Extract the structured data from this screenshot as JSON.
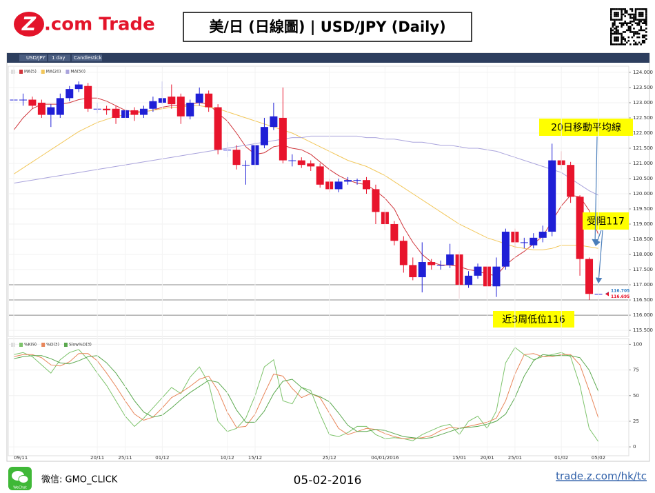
{
  "header": {
    "logo_mark": "Z",
    "logo_text": ".com Trade",
    "title": "美/日 (日線圖) | USD/JPY  (Daily)"
  },
  "toolbar": {
    "symbol": "USD/JPY",
    "interval": "1 day",
    "chart_type": "Candlestick"
  },
  "footer": {
    "wechat_icon": "WeChat",
    "wechat": "微信: GMO_CLICK",
    "date": "05-02-2016",
    "url": "trade.z.com/hk/tc"
  },
  "chart_data": [
    {
      "type": "candlestick",
      "up_color": "#1f1fd6",
      "down_color": "#e8142c",
      "open": [
        123.1,
        123.1,
        123.1,
        123.0,
        122.6,
        122.6,
        123.15,
        123.45,
        123.55,
        122.8,
        122.8,
        122.8,
        122.5,
        122.75,
        122.6,
        122.8,
        123.0,
        123.2,
        123.2,
        122.55,
        123.0,
        123.3,
        122.85,
        121.45,
        121.45,
        120.95,
        120.95,
        121.6,
        122.2,
        122.5,
        121.1,
        121.1,
        121.0,
        120.9,
        120.4,
        120.15,
        120.4,
        120.45,
        120.45,
        120.15,
        119.4,
        119.0,
        118.45,
        117.65,
        117.25,
        117.75,
        117.65,
        117.65,
        118.0,
        117.0,
        117.3,
        117.6,
        116.95,
        117.6,
        118.75,
        118.4,
        118.3,
        118.55,
        118.75,
        121.1,
        120.95,
        119.9,
        117.85,
        116.7
      ],
      "high": [
        123.65,
        123.3,
        123.2,
        123.1,
        122.95,
        123.3,
        123.55,
        123.7,
        123.65,
        123.0,
        122.9,
        122.9,
        122.9,
        122.85,
        122.9,
        123.2,
        123.7,
        123.6,
        123.3,
        123.1,
        123.5,
        123.4,
        122.95,
        121.7,
        121.6,
        121.1,
        121.7,
        122.5,
        123.0,
        123.5,
        121.3,
        121.2,
        121.1,
        121.0,
        120.5,
        120.5,
        120.55,
        120.5,
        120.55,
        120.3,
        119.5,
        119.1,
        118.6,
        117.9,
        118.4,
        117.85,
        117.8,
        118.35,
        118.1,
        117.45,
        117.7,
        117.7,
        117.9,
        118.85,
        118.85,
        118.55,
        118.7,
        118.95,
        121.65,
        121.4,
        121.05,
        119.95,
        117.9,
        116.8
      ],
      "low": [
        122.8,
        122.9,
        122.8,
        122.5,
        122.2,
        122.5,
        123.05,
        123.35,
        122.7,
        122.65,
        122.6,
        122.3,
        122.4,
        122.4,
        122.5,
        122.7,
        122.95,
        122.8,
        122.3,
        122.45,
        122.9,
        122.7,
        121.3,
        121.2,
        120.8,
        120.3,
        120.8,
        121.5,
        122.1,
        121.0,
        120.9,
        120.85,
        120.75,
        120.2,
        120.05,
        120.05,
        120.3,
        120.3,
        120.0,
        119.0,
        118.8,
        118.3,
        117.4,
        117.15,
        116.75,
        117.5,
        117.5,
        117.55,
        116.55,
        116.9,
        117.2,
        116.55,
        116.6,
        117.5,
        118.2,
        118.2,
        118.2,
        118.4,
        118.6,
        120.8,
        119.7,
        117.3,
        116.5,
        116.55
      ],
      "close": [
        123.1,
        123.1,
        122.9,
        122.6,
        122.85,
        123.15,
        123.45,
        123.6,
        122.8,
        122.8,
        122.75,
        122.5,
        122.75,
        122.6,
        122.8,
        123.05,
        123.15,
        122.95,
        122.55,
        123.0,
        123.3,
        122.85,
        121.45,
        121.45,
        120.95,
        120.95,
        121.6,
        122.2,
        122.55,
        121.1,
        121.1,
        120.95,
        120.9,
        120.3,
        120.15,
        120.4,
        120.45,
        120.45,
        120.15,
        119.4,
        119.0,
        118.45,
        117.65,
        117.25,
        117.75,
        117.65,
        117.65,
        118.0,
        117.0,
        117.3,
        117.6,
        116.95,
        117.6,
        118.75,
        118.4,
        118.4,
        118.55,
        118.75,
        121.1,
        120.95,
        119.9,
        117.85,
        116.7,
        116.7
      ],
      "series": [
        {
          "name": "MA(5)",
          "color": "#d0353b",
          "values": [
            122.1,
            122.5,
            122.8,
            122.95,
            122.95,
            122.95,
            123.0,
            123.1,
            123.15,
            123.15,
            123.05,
            122.9,
            122.75,
            122.7,
            122.7,
            122.75,
            122.85,
            122.9,
            122.9,
            122.95,
            123.0,
            122.95,
            122.65,
            122.4,
            122.0,
            121.55,
            121.3,
            121.35,
            121.55,
            121.6,
            121.5,
            121.45,
            121.3,
            121.05,
            120.8,
            120.6,
            120.45,
            120.35,
            120.3,
            120.1,
            119.85,
            119.5,
            118.9,
            118.4,
            118.0,
            117.75,
            117.65,
            117.65,
            117.6,
            117.5,
            117.45,
            117.35,
            117.3,
            117.65,
            117.9,
            118.1,
            118.35,
            118.6,
            119.1,
            119.6,
            119.95,
            119.9,
            119.45,
            118.65
          ]
        },
        {
          "name": "MA(20)",
          "color": "#f2c75a",
          "values": [
            120.65,
            120.85,
            121.05,
            121.25,
            121.45,
            121.65,
            121.85,
            122.05,
            122.2,
            122.35,
            122.45,
            122.55,
            122.6,
            122.65,
            122.7,
            122.75,
            122.8,
            122.85,
            122.85,
            122.9,
            122.9,
            122.85,
            122.8,
            122.7,
            122.6,
            122.5,
            122.4,
            122.3,
            122.2,
            122.1,
            122.0,
            121.85,
            121.7,
            121.55,
            121.4,
            121.25,
            121.1,
            121.0,
            120.9,
            120.75,
            120.6,
            120.4,
            120.2,
            120.0,
            119.8,
            119.6,
            119.4,
            119.2,
            119.0,
            118.85,
            118.7,
            118.55,
            118.45,
            118.35,
            118.25,
            118.2,
            118.15,
            118.15,
            118.2,
            118.3,
            118.3,
            118.3,
            118.25,
            118.2
          ]
        },
        {
          "name": "MA(50)",
          "color": "#a9a3dc",
          "values": [
            120.35,
            120.4,
            120.45,
            120.5,
            120.55,
            120.6,
            120.65,
            120.7,
            120.75,
            120.8,
            120.85,
            120.9,
            120.95,
            121.0,
            121.05,
            121.1,
            121.15,
            121.2,
            121.25,
            121.3,
            121.35,
            121.4,
            121.45,
            121.5,
            121.55,
            121.6,
            121.65,
            121.7,
            121.75,
            121.8,
            121.85,
            121.85,
            121.9,
            121.9,
            121.9,
            121.9,
            121.9,
            121.9,
            121.85,
            121.85,
            121.8,
            121.8,
            121.75,
            121.7,
            121.7,
            121.65,
            121.6,
            121.6,
            121.55,
            121.5,
            121.5,
            121.45,
            121.4,
            121.3,
            121.2,
            121.1,
            121.0,
            120.9,
            120.8,
            120.7,
            120.5,
            120.3,
            120.1,
            119.95
          ]
        }
      ],
      "levels": [
        117,
        116.5,
        116
      ],
      "price_tags": [
        {
          "value": 116.705,
          "color": "#2b7bc4"
        },
        {
          "value": 116.695,
          "color": "#e8142c"
        }
      ],
      "annotations": [
        {
          "text": "20日移動平均線"
        },
        {
          "text": "受阻117"
        },
        {
          "text": "近3周低位116"
        }
      ],
      "ylim": [
        115.32,
        124.18
      ],
      "yticks": [
        {
          "value": 124,
          "label": "124.000"
        },
        {
          "value": 123.5,
          "label": "123.500"
        },
        {
          "value": 123,
          "label": "123.000"
        },
        {
          "value": 122.5,
          "label": "122.500"
        },
        {
          "value": 122,
          "label": "122.000"
        },
        {
          "value": 121.5,
          "label": "121.500"
        },
        {
          "value": 121,
          "label": "121.000"
        },
        {
          "value": 120.5,
          "label": "120.500"
        },
        {
          "value": 120,
          "label": "120.000"
        },
        {
          "value": 119.5,
          "label": "119.500"
        },
        {
          "value": 119,
          "label": "119.000"
        },
        {
          "value": 118.5,
          "label": "118.500"
        },
        {
          "value": 118,
          "label": "118.000"
        },
        {
          "value": 117.5,
          "label": "117.500"
        },
        {
          "value": 117,
          "label": "117.000"
        },
        {
          "value": 116.5,
          "label": "116.500"
        },
        {
          "value": 116,
          "label": "116.000"
        },
        {
          "value": 115.5,
          "label": "115.500"
        }
      ]
    },
    {
      "type": "line",
      "categories": [
        "09/11",
        null,
        null,
        null,
        null,
        null,
        null,
        null,
        null,
        "20/11",
        null,
        null,
        "25/11",
        null,
        null,
        null,
        "01/12",
        null,
        null,
        null,
        null,
        null,
        null,
        "10/12",
        null,
        null,
        "15/12",
        null,
        null,
        null,
        null,
        null,
        null,
        null,
        "25/12",
        null,
        null,
        null,
        null,
        null,
        "04/01/2016",
        null,
        null,
        null,
        null,
        null,
        null,
        null,
        "15/01",
        null,
        null,
        "20/01",
        null,
        null,
        "25/01",
        null,
        null,
        null,
        null,
        "01/02",
        null,
        null,
        null,
        "05/02"
      ],
      "series": [
        {
          "name": "%K(9)",
          "color": "#7dc36b",
          "values": [
            90,
            92,
            88,
            80,
            72,
            85,
            92,
            95,
            85,
            72,
            60,
            45,
            30,
            20,
            28,
            38,
            48,
            58,
            52,
            68,
            78,
            62,
            25,
            15,
            18,
            28,
            50,
            78,
            85,
            45,
            42,
            58,
            55,
            32,
            12,
            10,
            14,
            20,
            20,
            12,
            8,
            9,
            8,
            6,
            12,
            16,
            20,
            22,
            12,
            25,
            30,
            18,
            35,
            82,
            97,
            90,
            85,
            88,
            90,
            92,
            88,
            60,
            18,
            5
          ]
        },
        {
          "name": "%D(3)",
          "color": "#e8865a",
          "values": [
            88,
            90,
            90,
            87,
            80,
            79,
            83,
            91,
            91,
            84,
            72,
            59,
            45,
            32,
            26,
            29,
            38,
            48,
            53,
            59,
            66,
            69,
            55,
            34,
            19,
            20,
            32,
            52,
            71,
            69,
            57,
            48,
            52,
            48,
            33,
            18,
            12,
            15,
            18,
            17,
            13,
            10,
            8,
            8,
            9,
            11,
            16,
            19,
            18,
            20,
            22,
            24,
            28,
            45,
            71,
            90,
            91,
            88,
            88,
            90,
            90,
            80,
            55,
            28
          ]
        },
        {
          "name": "Slow%D(3)",
          "color": "#5aa84e",
          "values": [
            86,
            88,
            89,
            89,
            86,
            82,
            81,
            84,
            88,
            89,
            82,
            72,
            59,
            45,
            34,
            29,
            31,
            38,
            46,
            53,
            59,
            65,
            63,
            53,
            36,
            24,
            24,
            35,
            52,
            64,
            66,
            58,
            52,
            49,
            44,
            33,
            21,
            15,
            15,
            17,
            16,
            13,
            10,
            9,
            8,
            9,
            12,
            15,
            18,
            19,
            20,
            22,
            25,
            32,
            48,
            69,
            84,
            90,
            89,
            89,
            89,
            87,
            75,
            54
          ]
        }
      ],
      "ylim": [
        -8,
        105
      ],
      "yticks": [
        0,
        25,
        50,
        75,
        100
      ]
    }
  ]
}
